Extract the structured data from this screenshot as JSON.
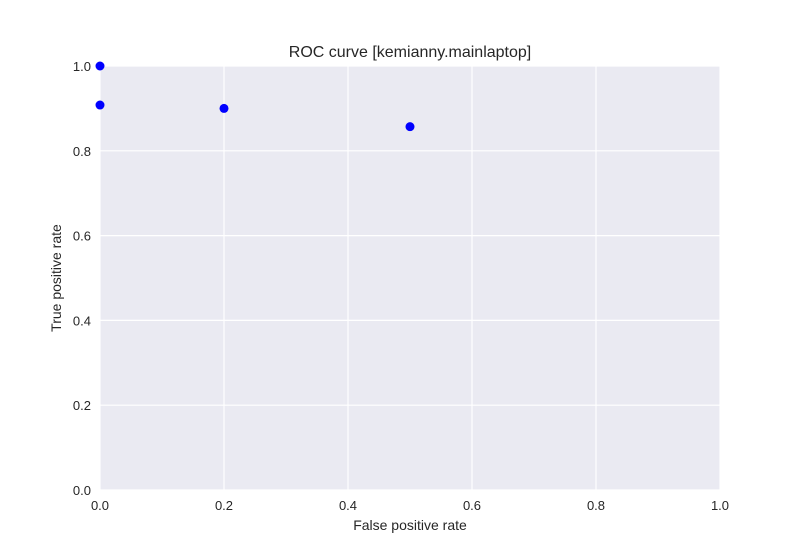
{
  "chart_data": {
    "type": "scatter",
    "title": "ROC curve [kemianny.mainlaptop]",
    "xlabel": "False positive rate",
    "ylabel": "True positive rate",
    "xlim": [
      0.0,
      1.0
    ],
    "ylim": [
      0.0,
      1.0
    ],
    "xticks": [
      "0.0",
      "0.2",
      "0.4",
      "0.6",
      "0.8",
      "1.0"
    ],
    "yticks": [
      "0.0",
      "0.2",
      "0.4",
      "0.6",
      "0.8",
      "1.0"
    ],
    "grid": true,
    "legend": "none",
    "series": [
      {
        "color": "#0000ff",
        "points": [
          {
            "x": 0.0,
            "y": 1.0
          },
          {
            "x": 0.0,
            "y": 0.908
          },
          {
            "x": 0.2,
            "y": 0.9
          },
          {
            "x": 0.5,
            "y": 0.857
          }
        ]
      }
    ]
  },
  "colors": {
    "plot_background": "#eaeaf2",
    "grid": "#ffffff",
    "text": "#262626"
  }
}
